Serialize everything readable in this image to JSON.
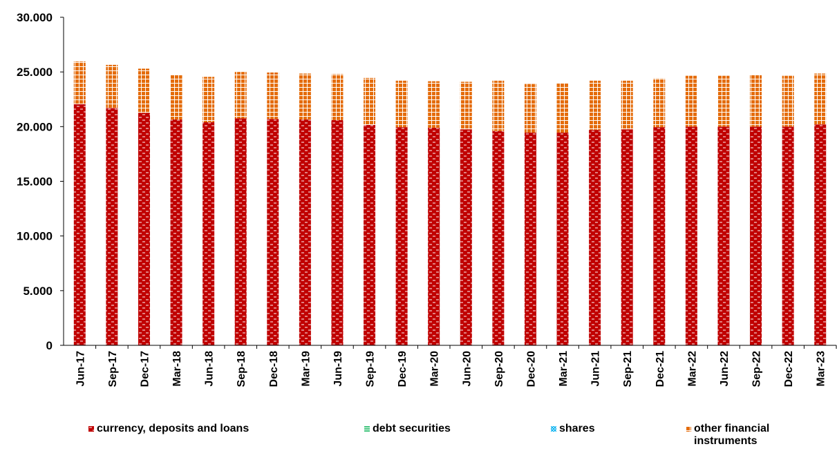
{
  "chart_data": {
    "type": "bar",
    "stacked": true,
    "title": "",
    "xlabel": "",
    "ylabel": "",
    "ylim": [
      0,
      30000
    ],
    "y_ticks": [
      "0",
      "5.000",
      "10.000",
      "15.000",
      "20.000",
      "25.000",
      "30.000"
    ],
    "y_tick_values": [
      0,
      5000,
      10000,
      15000,
      20000,
      25000,
      30000
    ],
    "grid": false,
    "legend_position": "bottom",
    "categories": [
      "Jun-17",
      "Sep-17",
      "Dec-17",
      "Mar-18",
      "Jun-18",
      "Sep-18",
      "Dec-18",
      "Mar-19",
      "Jun-19",
      "Sep-19",
      "Dec-19",
      "Mar-20",
      "Jun-20",
      "Sep-20",
      "Dec-20",
      "Mar-21",
      "Jun-21",
      "Sep-21",
      "Dec-21",
      "Mar-22",
      "Jun-22",
      "Sep-22",
      "Dec-22",
      "Mar-23"
    ],
    "series": [
      {
        "name": "currency, deposits and loans",
        "color": "#c00000",
        "values": [
          22050,
          21700,
          21250,
          20650,
          20400,
          20750,
          20700,
          20650,
          20600,
          20150,
          19950,
          19900,
          19750,
          19600,
          19450,
          19450,
          19700,
          19750,
          19950,
          20000,
          20000,
          20000,
          20000,
          20200
        ]
      },
      {
        "name": "debt securities",
        "color": "#00b050",
        "values": [
          0,
          0,
          0,
          0,
          0,
          0,
          0,
          0,
          0,
          0,
          0,
          0,
          0,
          0,
          0,
          0,
          0,
          0,
          0,
          0,
          0,
          0,
          0,
          0
        ]
      },
      {
        "name": "shares",
        "color": "#00b0f0",
        "values": [
          0,
          0,
          0,
          0,
          0,
          0,
          0,
          0,
          0,
          0,
          0,
          0,
          0,
          0,
          0,
          0,
          0,
          0,
          0,
          0,
          0,
          0,
          0,
          0
        ]
      },
      {
        "name": "other financial instruments",
        "color": "#e46c0a",
        "values": [
          3900,
          3950,
          4050,
          4100,
          4150,
          4250,
          4250,
          4200,
          4200,
          4300,
          4250,
          4250,
          4350,
          4600,
          4450,
          4500,
          4500,
          4450,
          4450,
          4650,
          4650,
          4750,
          4650,
          4650
        ]
      }
    ]
  }
}
